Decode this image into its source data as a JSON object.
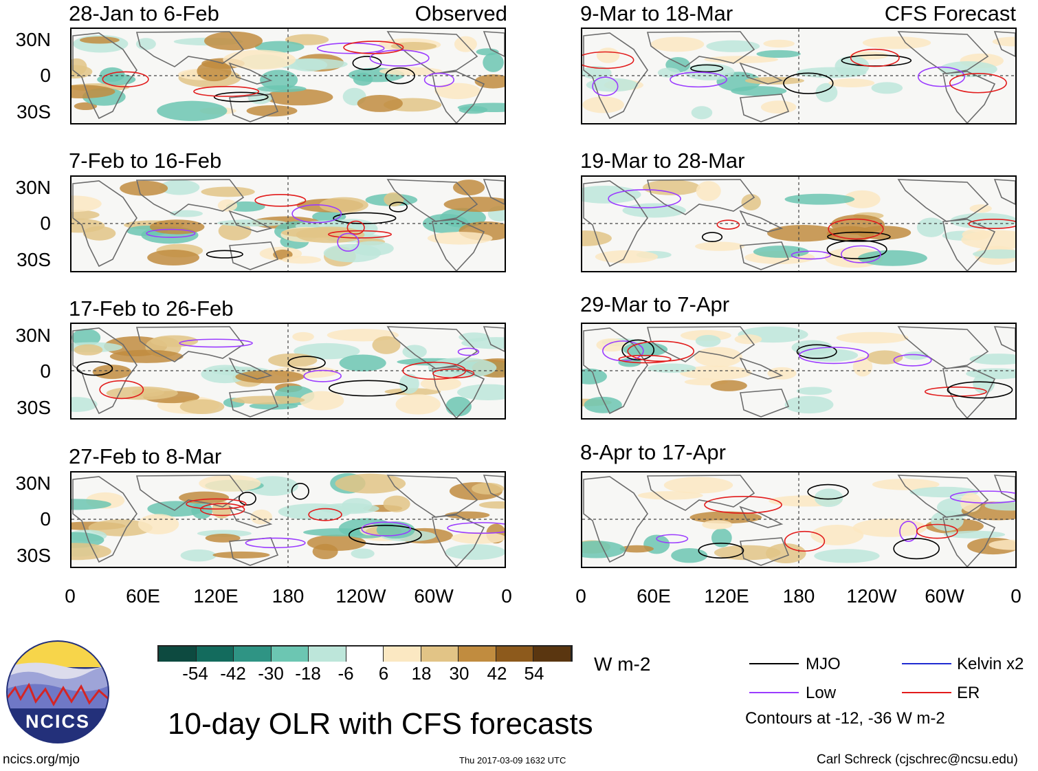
{
  "title": "10-day OLR with CFS forecasts",
  "units_label": "W m-2",
  "footer": {
    "site": "ncics.org/mjo",
    "timestamp": "Thu 2017-03-09 1632 UTC",
    "author": "Carl Schreck (cjschrec@ncsu.edu)"
  },
  "logo": {
    "text": "NCICS"
  },
  "columns": {
    "left_label": "Observed",
    "right_label": "CFS Forecast"
  },
  "panels_left": [
    {
      "title": "28-Jan to 6-Feb"
    },
    {
      "title": "7-Feb to 16-Feb"
    },
    {
      "title": "17-Feb to 26-Feb"
    },
    {
      "title": "27-Feb to 8-Mar"
    }
  ],
  "panels_right": [
    {
      "title": "9-Mar to 18-Mar"
    },
    {
      "title": "19-Mar to 28-Mar"
    },
    {
      "title": "29-Mar to 7-Apr"
    },
    {
      "title": "8-Apr to 17-Apr"
    }
  ],
  "lat_labels": [
    "30N",
    "0",
    "30S"
  ],
  "lon_labels": [
    "0",
    "60E",
    "120E",
    "180",
    "120W",
    "60W",
    "0"
  ],
  "colorbar": {
    "ticks": [
      "-54",
      "-42",
      "-30",
      "-18",
      "-6",
      "6",
      "18",
      "30",
      "42",
      "54"
    ],
    "colors": [
      "#0d4a40",
      "#136b5d",
      "#2f9484",
      "#6cc6b2",
      "#bde6da",
      "#ffffff",
      "#fbe8c2",
      "#e2c486",
      "#c18c3f",
      "#8d5a1c",
      "#5a3610"
    ]
  },
  "legend": {
    "mjo": "MJO",
    "low": "Low",
    "kelvin": "Kelvin x2",
    "er": "ER",
    "contours_note": "Contours at -12, -36 W m-2",
    "colors": {
      "mjo": "#000000",
      "low": "#9b3bff",
      "kelvin": "#1f2bd1",
      "er": "#e21b1b"
    }
  }
}
